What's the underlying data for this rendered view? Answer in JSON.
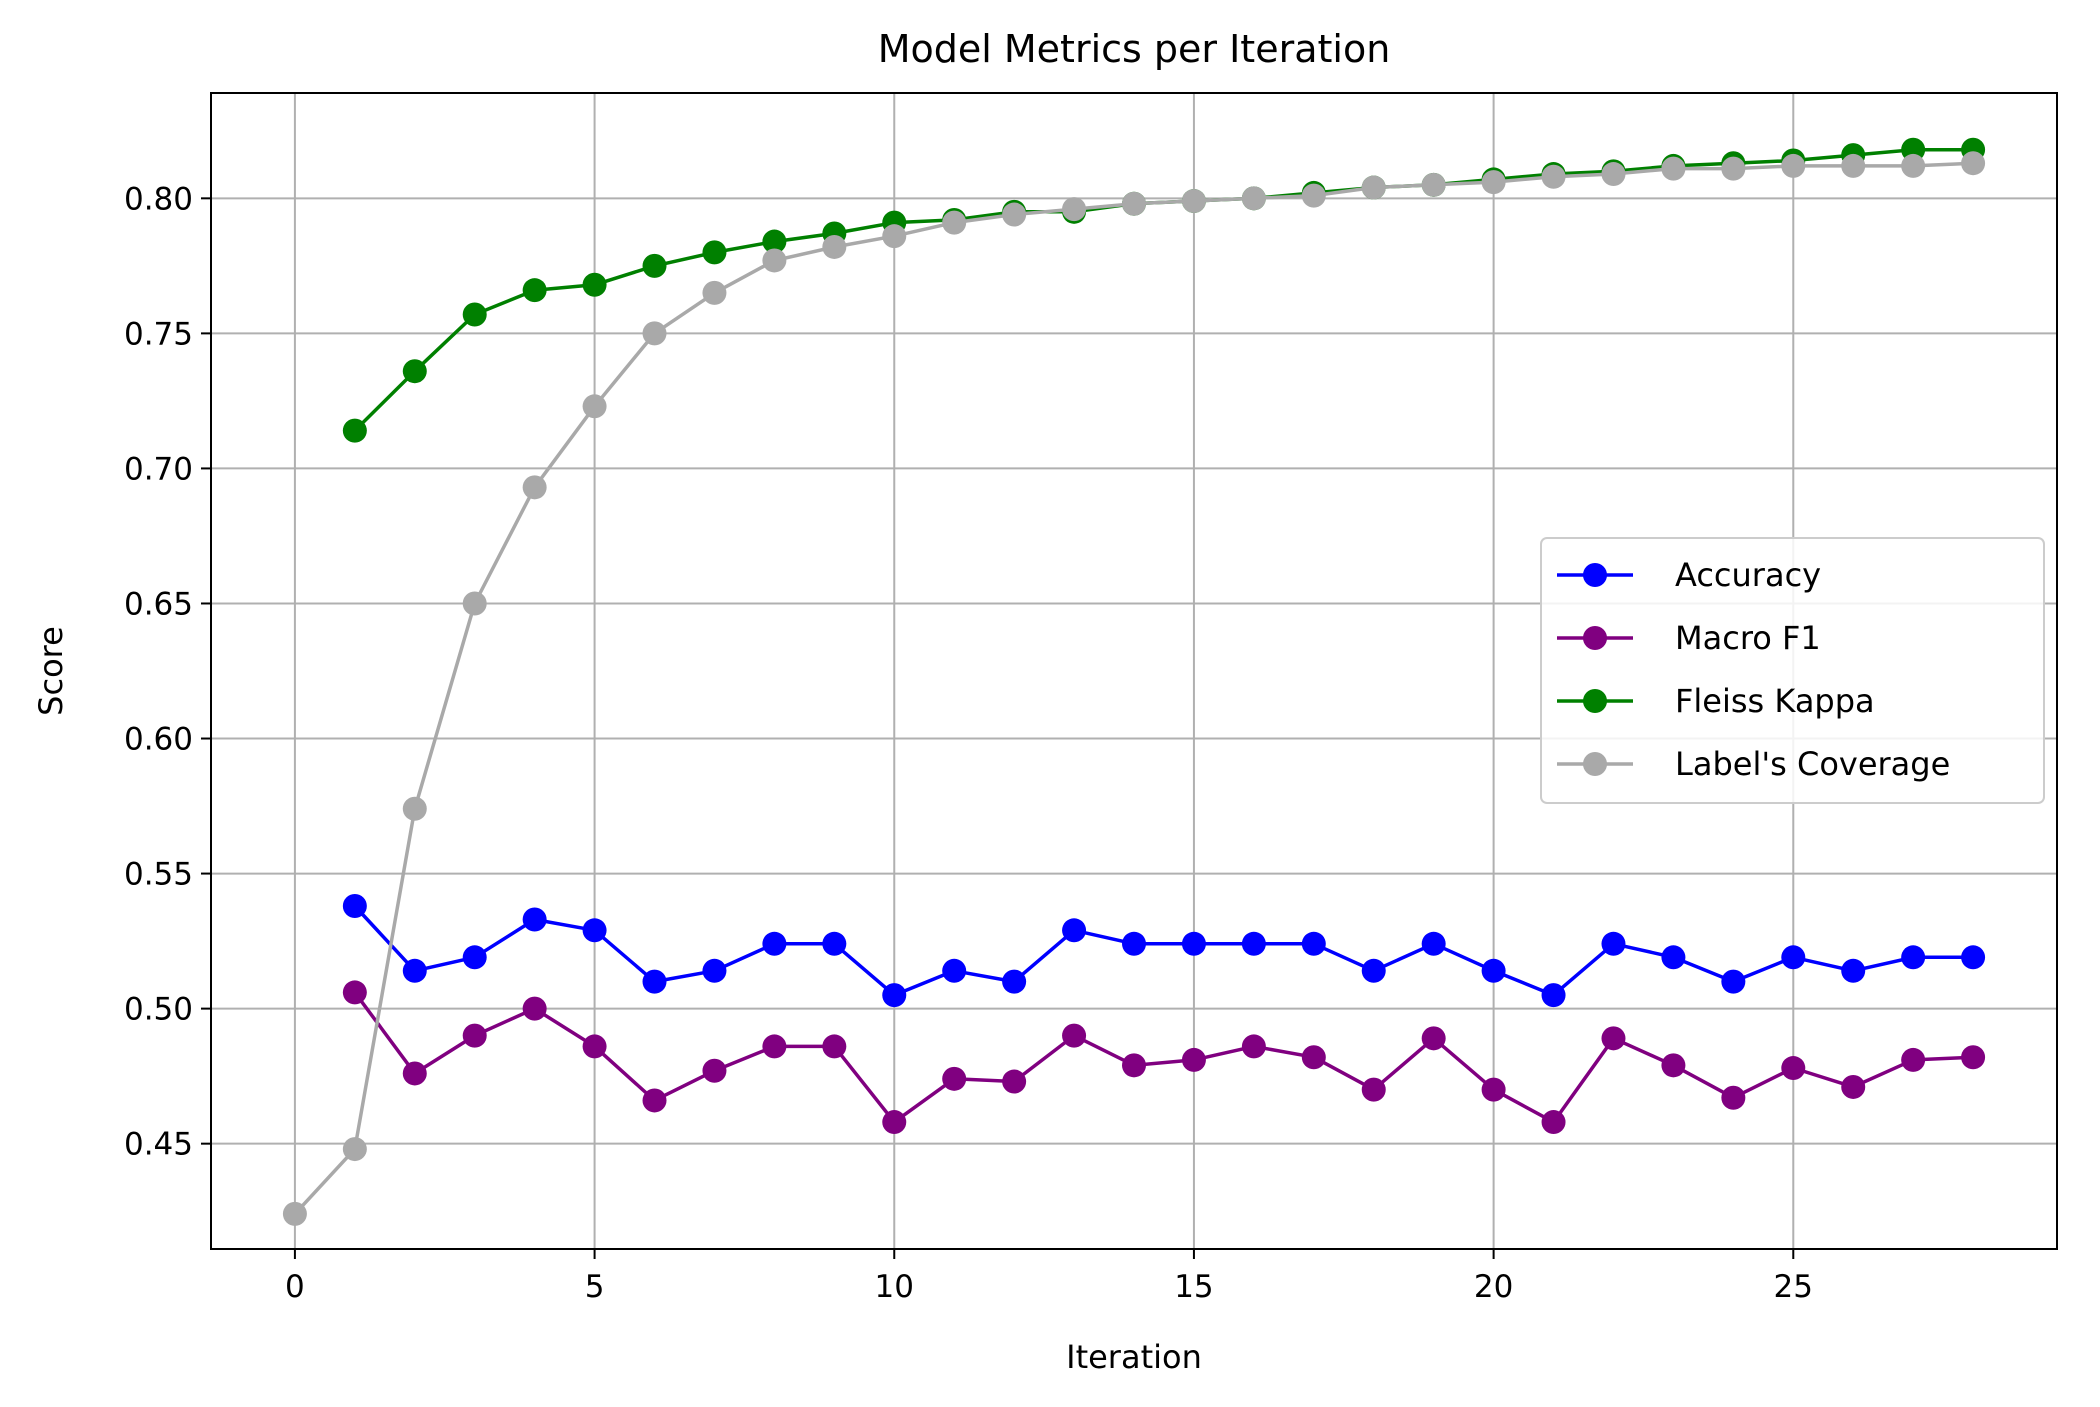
{
  "chart_data": {
    "type": "line",
    "title": "Model Metrics per Iteration",
    "xlabel": "Iteration",
    "ylabel": "Score",
    "xlim": [
      -1.4,
      29.4
    ],
    "ylim": [
      0.411,
      0.839
    ],
    "xticks": [
      0,
      5,
      10,
      15,
      20,
      25
    ],
    "yticks": [
      0.45,
      0.5,
      0.55,
      0.6,
      0.65,
      0.7,
      0.75,
      0.8
    ],
    "ytick_labels": [
      "0.45",
      "0.50",
      "0.55",
      "0.60",
      "0.65",
      "0.70",
      "0.75",
      "0.80"
    ],
    "grid": true,
    "legend_position": "center-right",
    "series": [
      {
        "name": "Accuracy",
        "color": "#0000ff",
        "x": [
          1,
          2,
          3,
          4,
          5,
          6,
          7,
          8,
          9,
          10,
          11,
          12,
          13,
          14,
          15,
          16,
          17,
          18,
          19,
          20,
          21,
          22,
          23,
          24,
          25,
          26,
          27,
          28
        ],
        "values": [
          0.538,
          0.514,
          0.519,
          0.533,
          0.529,
          0.51,
          0.514,
          0.524,
          0.524,
          0.505,
          0.514,
          0.51,
          0.529,
          0.524,
          0.524,
          0.524,
          0.524,
          0.514,
          0.524,
          0.514,
          0.505,
          0.524,
          0.519,
          0.51,
          0.519,
          0.514,
          0.519,
          0.519
        ]
      },
      {
        "name": "Macro F1",
        "color": "#800080",
        "x": [
          1,
          2,
          3,
          4,
          5,
          6,
          7,
          8,
          9,
          10,
          11,
          12,
          13,
          14,
          15,
          16,
          17,
          18,
          19,
          20,
          21,
          22,
          23,
          24,
          25,
          26,
          27,
          28
        ],
        "values": [
          0.506,
          0.476,
          0.49,
          0.5,
          0.486,
          0.466,
          0.477,
          0.486,
          0.486,
          0.458,
          0.474,
          0.473,
          0.49,
          0.479,
          0.481,
          0.486,
          0.482,
          0.47,
          0.489,
          0.47,
          0.458,
          0.489,
          0.479,
          0.467,
          0.478,
          0.471,
          0.481,
          0.482
        ]
      },
      {
        "name": "Fleiss Kappa",
        "color": "#008000",
        "x": [
          1,
          2,
          3,
          4,
          5,
          6,
          7,
          8,
          9,
          10,
          11,
          12,
          13,
          14,
          15,
          16,
          17,
          18,
          19,
          20,
          21,
          22,
          23,
          24,
          25,
          26,
          27,
          28
        ],
        "values": [
          0.714,
          0.736,
          0.757,
          0.766,
          0.768,
          0.775,
          0.78,
          0.784,
          0.787,
          0.791,
          0.792,
          0.795,
          0.795,
          0.798,
          0.799,
          0.8,
          0.802,
          0.804,
          0.805,
          0.807,
          0.809,
          0.81,
          0.812,
          0.813,
          0.814,
          0.816,
          0.818,
          0.818
        ]
      },
      {
        "name": "Label's Coverage",
        "color": "#a9a9a9",
        "x": [
          0,
          1,
          2,
          3,
          4,
          5,
          6,
          7,
          8,
          9,
          10,
          11,
          12,
          13,
          14,
          15,
          16,
          17,
          18,
          19,
          20,
          21,
          22,
          23,
          24,
          25,
          26,
          27,
          28
        ],
        "values": [
          0.424,
          0.448,
          0.574,
          0.65,
          0.693,
          0.723,
          0.75,
          0.765,
          0.777,
          0.782,
          0.786,
          0.791,
          0.794,
          0.796,
          0.798,
          0.799,
          0.8,
          0.801,
          0.804,
          0.805,
          0.806,
          0.808,
          0.809,
          0.811,
          0.811,
          0.812,
          0.812,
          0.812,
          0.813
        ]
      }
    ]
  }
}
